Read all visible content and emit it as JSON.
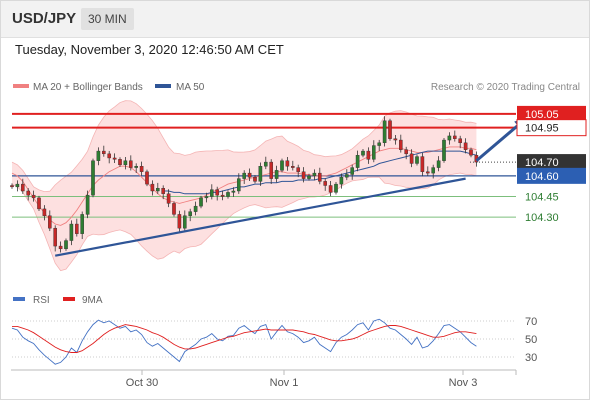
{
  "header": {
    "symbol": "USD/JPY",
    "timeframe": "30 MIN"
  },
  "datetime": "Tuesday, November 3, 2020 12:46:50 AM CET",
  "copyright": "Research © 2020 Trading Central",
  "colors": {
    "bollinger": "#f08080",
    "bollinger_fill": "#fde0e0",
    "ma50": "#2f5597",
    "resistance": "#e02020",
    "support_green": "#7cbf7c",
    "rsi": "#4472c4",
    "rsi_ma": "#e02020",
    "candle_up": "#2e7d32",
    "candle_down": "#c62828"
  },
  "chart_data": [
    {
      "type": "candlestick",
      "legend": [
        {
          "label": "MA 20 + Bollinger Bands",
          "color": "#f08080"
        },
        {
          "label": "MA 50",
          "color": "#2f5597"
        }
      ],
      "x_labels": [
        "Oct 30",
        "Nov 1",
        "Nov 3"
      ],
      "y_range": [
        103.8,
        105.18
      ],
      "horizontal_levels": [
        {
          "value": 105.05,
          "label": "105.05",
          "style": "resistance-red-box"
        },
        {
          "value": 104.95,
          "label": "104.95",
          "style": "resistance-red-outline"
        },
        {
          "value": 104.7,
          "label": "104.70",
          "style": "current-price"
        },
        {
          "value": 104.6,
          "label": "104.60",
          "style": "pivot-blue"
        },
        {
          "value": 104.45,
          "label": "104.45",
          "style": "support-green"
        },
        {
          "value": 104.3,
          "label": "104.30",
          "style": "support-green"
        }
      ],
      "trendline": [
        {
          "bar": 8,
          "price": 104.02
        },
        {
          "bar": 84,
          "price": 104.58
        }
      ],
      "forecast_arrow": [
        {
          "bar": 86,
          "price": 104.71
        },
        {
          "bar": 95,
          "price": 105.01
        }
      ],
      "close": [
        104.52,
        104.54,
        104.49,
        104.46,
        104.44,
        104.36,
        104.31,
        104.22,
        104.09,
        104.07,
        104.13,
        104.25,
        104.18,
        104.32,
        104.46,
        104.71,
        104.78,
        104.76,
        104.73,
        104.72,
        104.68,
        104.71,
        104.66,
        104.67,
        104.63,
        104.54,
        104.49,
        104.51,
        104.47,
        104.4,
        104.32,
        104.22,
        104.31,
        104.34,
        104.38,
        104.44,
        104.45,
        104.5,
        104.46,
        104.45,
        104.48,
        104.49,
        104.58,
        104.62,
        104.59,
        104.56,
        104.67,
        104.7,
        104.58,
        104.64,
        104.71,
        104.67,
        104.66,
        104.63,
        104.58,
        104.6,
        104.62,
        104.56,
        104.53,
        104.48,
        104.54,
        104.59,
        104.61,
        104.66,
        104.75,
        104.78,
        104.72,
        104.82,
        104.84,
        105.0,
        104.87,
        104.86,
        104.79,
        104.76,
        104.69,
        104.74,
        104.63,
        104.62,
        104.66,
        104.71,
        104.86,
        104.89,
        104.87,
        104.84,
        104.79,
        104.75,
        104.7
      ],
      "ma20": [
        104.62,
        104.6,
        104.56,
        104.5,
        104.44,
        104.38,
        104.33,
        104.28,
        104.25,
        104.24,
        104.26,
        104.3,
        104.35,
        104.41,
        104.47,
        104.53,
        104.57,
        104.6,
        104.63,
        104.65,
        104.67,
        104.67,
        104.66,
        104.63,
        104.59,
        104.55,
        104.51,
        104.47,
        104.44,
        104.42,
        104.41,
        104.4,
        104.41,
        104.42,
        104.43,
        104.44,
        104.46,
        104.48,
        104.5,
        104.52,
        104.54,
        104.55,
        104.56,
        104.57,
        104.58,
        104.59,
        104.6,
        104.61,
        104.62,
        104.63,
        104.63,
        104.62,
        104.62,
        104.62,
        104.61,
        104.61,
        104.6,
        104.6,
        104.6,
        104.61,
        104.62,
        104.64,
        104.66,
        104.68,
        104.7,
        104.72,
        104.74,
        104.76,
        104.78,
        104.79,
        104.8,
        104.8,
        104.8,
        104.79,
        104.78,
        104.77,
        104.77,
        104.77,
        104.78,
        104.79,
        104.8,
        104.81,
        104.81,
        104.81,
        104.8,
        104.8,
        104.79
      ],
      "ma50_start_bar": 28,
      "ma50": [
        104.49,
        104.49,
        104.48,
        104.48,
        104.47,
        104.47,
        104.47,
        104.47,
        104.47,
        104.48,
        104.48,
        104.49,
        104.5,
        104.51,
        104.52,
        104.52,
        104.53,
        104.54,
        104.54,
        104.55,
        104.55,
        104.55,
        104.56,
        104.56,
        104.56,
        104.57,
        104.57,
        104.57,
        104.57,
        104.58,
        104.58,
        104.59,
        104.6,
        104.61,
        104.62,
        104.63,
        104.64,
        104.65,
        104.66,
        104.67,
        104.69,
        104.7,
        104.71,
        104.72,
        104.73,
        104.74,
        104.75,
        104.76,
        104.77,
        104.78,
        104.78,
        104.78,
        104.78,
        104.78,
        104.78,
        104.78,
        104.77,
        104.76,
        104.75
      ]
    },
    {
      "type": "line",
      "legend": [
        {
          "label": "RSI",
          "color": "#4472c4"
        },
        {
          "label": "9MA",
          "color": "#e02020"
        }
      ],
      "y_ticks": [
        70,
        50,
        30
      ],
      "y_range": [
        20,
        80
      ],
      "rsi": [
        62,
        60,
        52,
        48,
        45,
        38,
        32,
        27,
        22,
        24,
        30,
        40,
        35,
        48,
        58,
        66,
        71,
        68,
        70,
        66,
        62,
        64,
        58,
        60,
        55,
        46,
        42,
        45,
        40,
        35,
        30,
        25,
        36,
        40,
        44,
        50,
        52,
        56,
        50,
        48,
        53,
        54,
        62,
        65,
        60,
        56,
        64,
        66,
        50,
        58,
        65,
        58,
        56,
        52,
        46,
        48,
        52,
        44,
        40,
        36,
        46,
        52,
        55,
        60,
        66,
        68,
        60,
        70,
        72,
        68,
        62,
        60,
        55,
        50,
        44,
        52,
        40,
        42,
        48,
        56,
        65,
        66,
        62,
        58,
        52,
        46,
        42
      ],
      "ma9": [
        64,
        64,
        62,
        60,
        57,
        53,
        49,
        45,
        41,
        38,
        36,
        35,
        35,
        37,
        41,
        45,
        50,
        55,
        59,
        62,
        64,
        66,
        65,
        64,
        62,
        60,
        57,
        55,
        52,
        48,
        44,
        41,
        39,
        39,
        40,
        42,
        44,
        46,
        48,
        50,
        52,
        53,
        55,
        57,
        58,
        59,
        60,
        61,
        60,
        60,
        60,
        60,
        60,
        59,
        58,
        56,
        55,
        53,
        51,
        49,
        48,
        48,
        49,
        50,
        52,
        55,
        58,
        60,
        62,
        64,
        65,
        65,
        64,
        62,
        60,
        58,
        56,
        54,
        52,
        52,
        53,
        55,
        57,
        58,
        58,
        57,
        56
      ]
    }
  ]
}
